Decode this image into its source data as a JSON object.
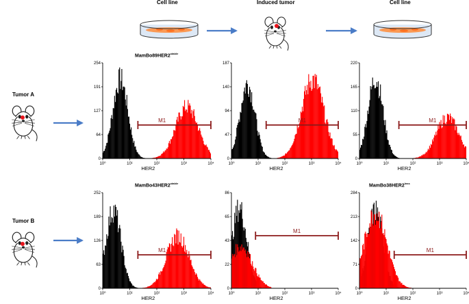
{
  "header": {
    "cell_line_left": "Cell line",
    "induced_tumor": "Induced tumor",
    "cell_line_right": "Cell line"
  },
  "rows": [
    {
      "label": "Tumor A"
    },
    {
      "label": "Tumor B"
    }
  ],
  "colors": {
    "arrow": "#4a7cc7",
    "control": "#000000",
    "her2": "#ff0000",
    "gate": "#8b1a1a",
    "dish_cells": "#ff8c3a",
    "dish_fill": "#dde8f5",
    "mouse_eye": "#e8141c"
  },
  "icons": [
    "petri-dish-icon",
    "mouse-icon",
    "arrow-right-icon"
  ],
  "chart_data": [
    {
      "type": "histogram",
      "title_main": "MamBo89HER2",
      "title_sup": "stable",
      "xlabel": "HER2",
      "x_scale": "log",
      "xlim": [
        1,
        10000
      ],
      "x_ticks": [
        "10⁰",
        "10¹",
        "10²",
        "10³",
        "10⁴"
      ],
      "y_ticks": [
        "0",
        "64",
        "127",
        "191",
        "254"
      ],
      "ylim": [
        0,
        254
      ],
      "gate": {
        "label": "M1",
        "range": [
          20,
          10000
        ]
      },
      "series": [
        {
          "name": "",
          "color": "#000000",
          "peak_x": 4.5,
          "peak_y": 245
        },
        {
          "name": "",
          "color": "#ff0000",
          "peak_x": 1300,
          "peak_y": 160
        }
      ]
    },
    {
      "type": "histogram",
      "title_main": "",
      "title_sup": "",
      "xlabel": "HER2",
      "x_scale": "log",
      "xlim": [
        1,
        10000
      ],
      "x_ticks": [
        "10⁰",
        "10¹",
        "10²",
        "10³",
        "10⁴"
      ],
      "y_ticks": [
        "0",
        "47",
        "94",
        "140",
        "187"
      ],
      "ylim": [
        0,
        187
      ],
      "gate": {
        "label": "M1",
        "range": [
          20,
          10000
        ]
      },
      "series": [
        {
          "name": "",
          "color": "#000000",
          "peak_x": 4,
          "peak_y": 170
        },
        {
          "name": "",
          "color": "#ff0000",
          "peak_x": 1100,
          "peak_y": 180
        }
      ]
    },
    {
      "type": "histogram",
      "title_main": "",
      "title_sup": "",
      "xlabel": "HER2",
      "x_scale": "log",
      "xlim": [
        1,
        10000
      ],
      "x_ticks": [
        "10⁰",
        "10¹",
        "10²",
        "10³",
        "10⁴"
      ],
      "y_ticks": [
        "0",
        "55",
        "110",
        "165",
        "220"
      ],
      "ylim": [
        0,
        220
      ],
      "gate": {
        "label": "M1",
        "range": [
          30,
          10000
        ]
      },
      "series": [
        {
          "name": "",
          "color": "#000000",
          "peak_x": 4,
          "peak_y": 215
        },
        {
          "name": "",
          "color": "#ff0000",
          "peak_x": 2000,
          "peak_y": 110
        }
      ]
    },
    {
      "type": "histogram",
      "title_main": "MamBo43HER2",
      "title_sup": "stable",
      "xlabel": "HER2",
      "x_scale": "log",
      "xlim": [
        1,
        10000
      ],
      "x_ticks": [
        "10⁰",
        "10¹",
        "10²",
        "10³",
        "10⁴"
      ],
      "y_ticks": [
        "0",
        "63",
        "126",
        "189",
        "252"
      ],
      "ylim": [
        0,
        252
      ],
      "gate": {
        "label": "M1",
        "range": [
          20,
          10000
        ]
      },
      "series": [
        {
          "name": "",
          "color": "#000000",
          "peak_x": 2.5,
          "peak_y": 240
        },
        {
          "name": "",
          "color": "#ff0000",
          "peak_x": 600,
          "peak_y": 160
        }
      ]
    },
    {
      "type": "histogram",
      "title_main": "",
      "title_sup": "",
      "xlabel": "HER2",
      "x_scale": "log",
      "xlim": [
        1,
        10000
      ],
      "x_ticks": [
        "10⁰",
        "10¹",
        "10²",
        "10³",
        "10⁴"
      ],
      "y_ticks": [
        "0",
        "22",
        "43",
        "65",
        "86"
      ],
      "ylim": [
        0,
        86
      ],
      "gate": {
        "label": "M1",
        "range": [
          8,
          10000
        ]
      },
      "series": [
        {
          "name": "",
          "color": "#000000",
          "peak_x": 2,
          "peak_y": 84
        },
        {
          "name": "",
          "color": "#ff0000",
          "peak_x": 2.3,
          "peak_y": 44
        }
      ]
    },
    {
      "type": "histogram",
      "title_main": "MamBo38HER2",
      "title_sup": "loss",
      "xlabel": "HER2",
      "x_scale": "log",
      "xlim": [
        1,
        10000
      ],
      "x_ticks": [
        "10⁰",
        "10¹",
        "10²",
        "10³",
        "10⁴"
      ],
      "y_ticks": [
        "0",
        "71",
        "142",
        "213",
        "284"
      ],
      "ylim": [
        0,
        284
      ],
      "gate": {
        "label": "M1",
        "range": [
          20,
          10000
        ]
      },
      "series": [
        {
          "name": "",
          "color": "#000000",
          "peak_x": 4,
          "peak_y": 270
        },
        {
          "name": "",
          "color": "#ff0000",
          "peak_x": 4,
          "peak_y": 260
        }
      ]
    }
  ]
}
